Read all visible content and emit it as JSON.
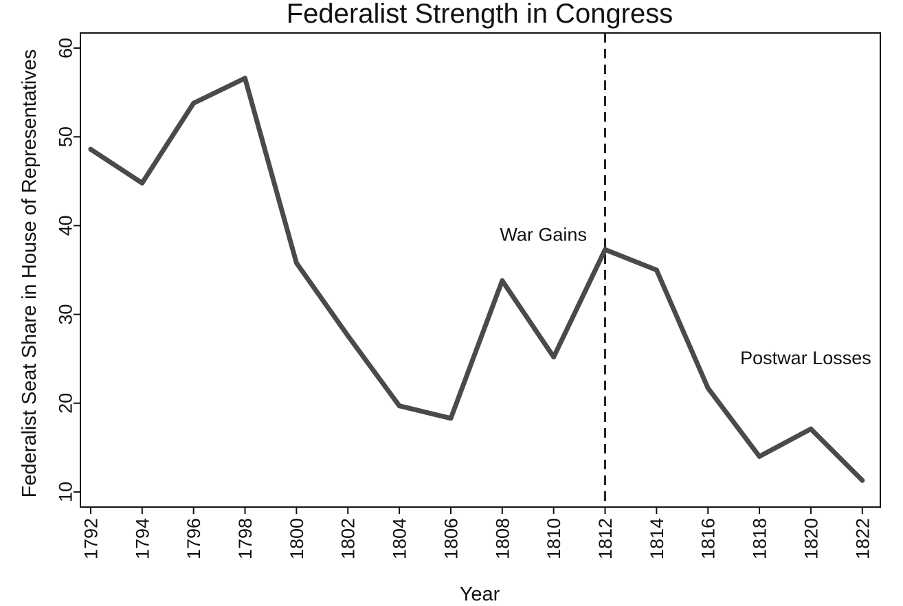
{
  "chart_data": {
    "type": "line",
    "title": "Federalist Strength in Congress",
    "xlabel": "Year",
    "ylabel": "Federalist Seat Share in House of Representatives",
    "x": [
      1792,
      1794,
      1796,
      1798,
      1800,
      1802,
      1804,
      1806,
      1808,
      1810,
      1812,
      1814,
      1816,
      1818,
      1820,
      1822
    ],
    "series": [
      {
        "name": "Federalist seat share",
        "values": [
          48.6,
          44.8,
          53.8,
          56.6,
          35.8,
          27.6,
          19.7,
          18.3,
          33.8,
          25.2,
          37.3,
          35.0,
          21.7,
          14.0,
          17.1,
          11.3
        ],
        "color": "#4a4a4a"
      }
    ],
    "x_ticks": [
      "1792",
      "1794",
      "1796",
      "1798",
      "1800",
      "1802",
      "1804",
      "1806",
      "1808",
      "1810",
      "1812",
      "1814",
      "1816",
      "1818",
      "1820",
      "1822"
    ],
    "y_ticks": [
      "10",
      "20",
      "30",
      "40",
      "50",
      "60"
    ],
    "xlim": [
      1791.6,
      1822.7
    ],
    "ylim": [
      8.3,
      61.7
    ],
    "vline": {
      "x": 1812,
      "style": "dashed"
    },
    "annotations": [
      {
        "text": "War Gains",
        "x": 1809.6,
        "y": 38.3
      },
      {
        "text": "Postwar Losses",
        "x": 1819.8,
        "y": 24.4
      }
    ],
    "grid": false,
    "legend": "none"
  }
}
